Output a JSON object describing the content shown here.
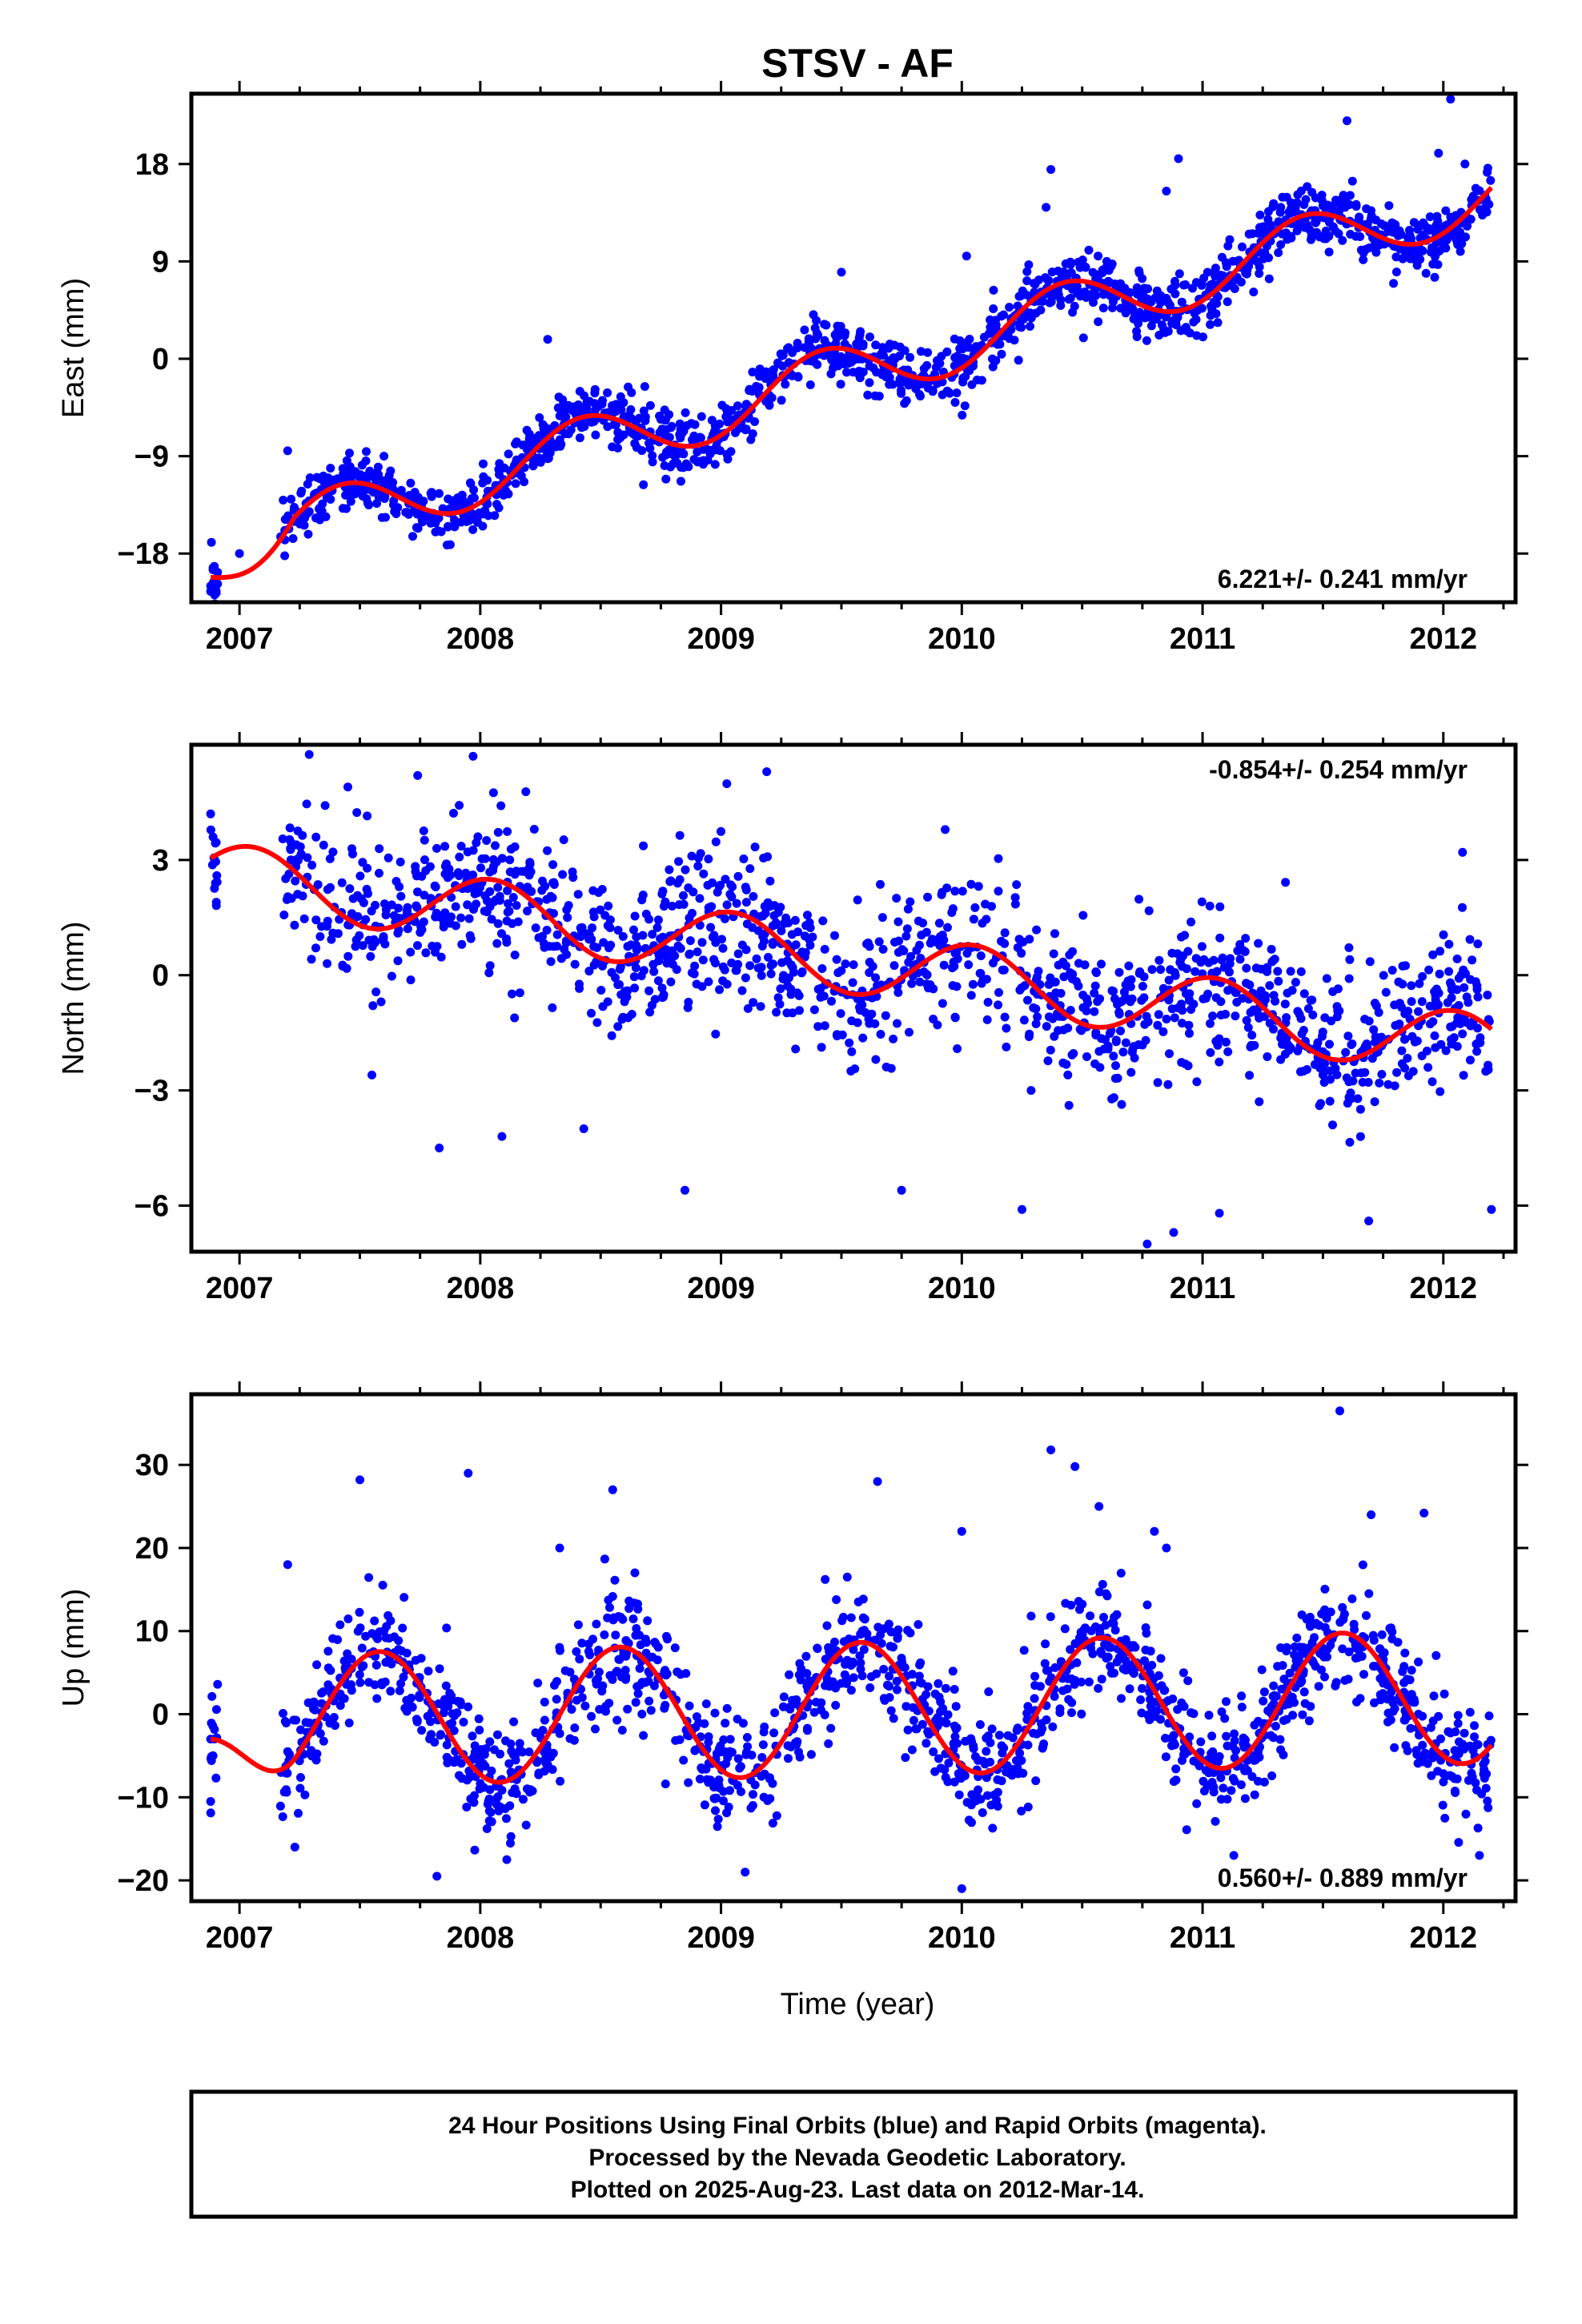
{
  "title": "STSV - AF",
  "xaxis_label": "Time (year)",
  "footer": {
    "line1": "24 Hour Positions Using Final Orbits (blue) and Rapid Orbits (magenta).",
    "line2": "Processed by the Nevada Geodetic Laboratory.",
    "line3": "Plotted on 2025-Aug-23. Last data on 2012-Mar-14."
  },
  "colors": {
    "points": "#0000ff",
    "fit": "#ff0000",
    "frame": "#000000"
  },
  "chart_data": [
    {
      "type": "scatter",
      "ylabel": "East (mm)",
      "rate_label": "6.221+/- 0.241 mm/yr",
      "rate_position": "bottom-right",
      "xlim": [
        2006.8,
        2012.3
      ],
      "ylim": [
        -22.5,
        24.5
      ],
      "xticks": [
        2007,
        2008,
        2009,
        2010,
        2011,
        2012
      ],
      "yticks": [
        -18,
        -9,
        0,
        9,
        18
      ],
      "series": [
        {
          "kind": "points",
          "start": 2006.88,
          "end": 2012.2,
          "count": 1650,
          "trend": 6.221,
          "offset": -1.5,
          "amplitude": 2.8,
          "phase_peak": 0.42,
          "scatter_sd": 1.3,
          "outliers": [
            [
              2006.88,
              -21.5
            ],
            [
              2006.88,
              -21.0
            ],
            [
              2006.89,
              -19.5
            ],
            [
              2012.03,
              24
            ],
            [
              2011.6,
              22
            ],
            [
              2011.98,
              19
            ],
            [
              2010.9,
              18.5
            ],
            [
              2010.37,
              17.5
            ],
            [
              2010.85,
              15.5
            ],
            [
              2012.09,
              18
            ],
            [
              2009.5,
              8
            ],
            [
              2008.28,
              1.8
            ],
            [
              2007.2,
              -8.5
            ],
            [
              2007.6,
              -9
            ],
            [
              2010.02,
              9.5
            ],
            [
              2010.35,
              14
            ],
            [
              2007.0,
              -18
            ]
          ]
        },
        {
          "kind": "fit",
          "start": 2006.88,
          "end": 2012.2,
          "trend": 6.221,
          "offset": -1.5,
          "amplitude": 2.8,
          "phase_peak": 0.42,
          "anchor": [
            2006.88,
            -20.2
          ]
        }
      ]
    },
    {
      "type": "scatter",
      "ylabel": "North (mm)",
      "rate_label": "-0.854+/- 0.254 mm/yr",
      "rate_position": "top-right",
      "xlim": [
        2006.8,
        2012.3
      ],
      "ylim": [
        -7.2,
        6.0
      ],
      "xticks": [
        2007,
        2008,
        2009,
        2010,
        2011,
        2012
      ],
      "yticks": [
        -6,
        -3,
        0,
        3
      ],
      "series": [
        {
          "kind": "points",
          "start": 2006.88,
          "end": 2012.2,
          "count": 1500,
          "trend": -0.854,
          "offset": 0.4,
          "amplitude": 0.85,
          "phase_peak": 0.05,
          "scatter_sd": 1.0,
          "outliers": [
            [
              2006.88,
              4.2
            ],
            [
              2006.89,
              3.6
            ],
            [
              2006.9,
              2.4
            ],
            [
              2007.97,
              5.7
            ],
            [
              2007.45,
              4.9
            ],
            [
              2007.74,
              5.2
            ],
            [
              2009.19,
              5.3
            ],
            [
              2008.85,
              -5.6
            ],
            [
              2010.25,
              -6.1
            ],
            [
              2010.88,
              -6.7
            ],
            [
              2010.77,
              -7.0
            ],
            [
              2011.07,
              -6.2
            ],
            [
              2012.2,
              -6.1
            ],
            [
              2011.69,
              -6.4
            ],
            [
              2008.43,
              -4.0
            ],
            [
              2007.83,
              -4.5
            ],
            [
              2008.09,
              -4.2
            ],
            [
              2012.08,
              3.2
            ],
            [
              2007.55,
              -2.6
            ],
            [
              2009.75,
              -5.6
            ]
          ]
        },
        {
          "kind": "fit",
          "start": 2006.88,
          "end": 2012.2,
          "trend": -0.854,
          "offset": 0.4,
          "amplitude": 0.85,
          "phase_peak": 0.05
        }
      ]
    },
    {
      "type": "scatter",
      "ylabel": "Up (mm)",
      "rate_label": "0.560+/- 0.889 mm/yr",
      "rate_position": "bottom-right",
      "xlim": [
        2006.8,
        2012.3
      ],
      "ylim": [
        -22.5,
        38.5
      ],
      "xticks": [
        2007,
        2008,
        2009,
        2010,
        2011,
        2012
      ],
      "yticks": [
        -20,
        -10,
        0,
        10,
        20,
        30
      ],
      "series": [
        {
          "kind": "points",
          "start": 2006.88,
          "end": 2012.2,
          "count": 1600,
          "trend": 0.56,
          "offset": 0.6,
          "amplitude": 8.0,
          "phase_peak": 0.58,
          "scatter_sd": 3.4,
          "outliers": [
            [
              2006.88,
              -3
            ],
            [
              2006.88,
              -10.5
            ],
            [
              2006.89,
              -5
            ],
            [
              2007.5,
              28.2
            ],
            [
              2007.95,
              29
            ],
            [
              2008.55,
              27
            ],
            [
              2009.65,
              28
            ],
            [
              2010.37,
              31.8
            ],
            [
              2010.47,
              29.8
            ],
            [
              2011.57,
              36.5
            ],
            [
              2011.92,
              24.2
            ],
            [
              2011.7,
              24
            ],
            [
              2010.0,
              22
            ],
            [
              2010.8,
              22
            ],
            [
              2010.57,
              25
            ],
            [
              2007.82,
              -19.5
            ],
            [
              2009.1,
              -19
            ],
            [
              2010.0,
              -21
            ],
            [
              2012.15,
              -17
            ],
            [
              2007.23,
              -16
            ],
            [
              2008.11,
              -17.5
            ],
            [
              2011.13,
              -17
            ],
            [
              2008.33,
              20
            ],
            [
              2007.2,
              18
            ],
            [
              2010.85,
              20
            ]
          ]
        },
        {
          "kind": "fit",
          "start": 2006.88,
          "end": 2012.2,
          "trend": 0.56,
          "offset": 0.6,
          "amplitude": 8.0,
          "phase_peak": 0.58,
          "anchor": [
            2006.88,
            -3.0
          ]
        }
      ]
    }
  ]
}
